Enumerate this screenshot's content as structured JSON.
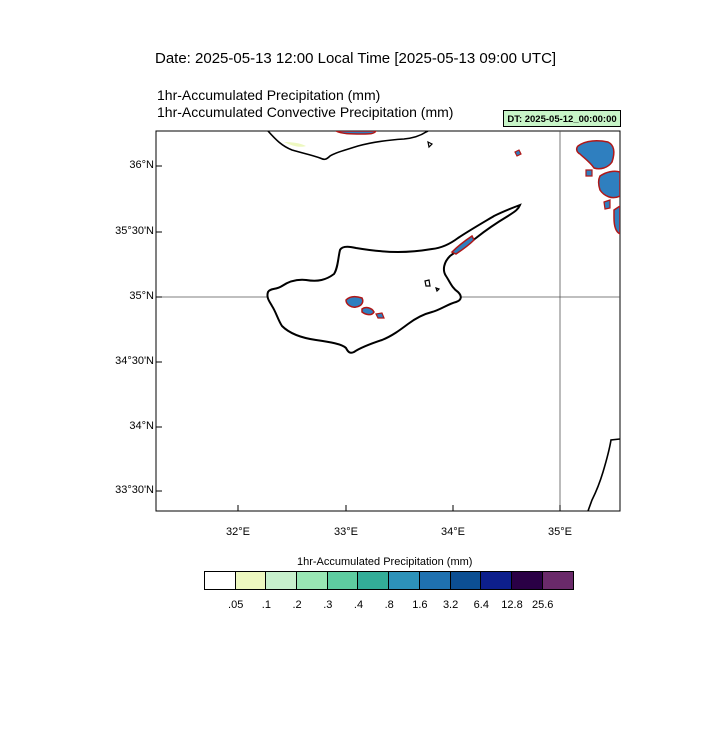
{
  "header": {
    "date_title": "Date: 2025-05-13  12:00 Local Time [2025-05-13  09:00 UTC]",
    "title_line_1": "1hr-Accumulated Precipitation   (mm)",
    "title_line_2": "1hr-Accumulated Convective Precipitation   (mm)",
    "dt_badge": "DT: 2025-05-12_00:00:00"
  },
  "map": {
    "lat_labels": [
      "36°N",
      "35°30'N",
      "35°N",
      "34°30'N",
      "34°N",
      "33°30'N"
    ],
    "lon_labels": [
      "32°E",
      "33°E",
      "34°E",
      "35°E"
    ],
    "reference_lines": [
      "35°N",
      "35°E"
    ],
    "coastline_color": "#000000",
    "convective_contour_color": "#b01818",
    "precip_fill_color": "#2f7fbf"
  },
  "colorbar": {
    "title": "1hr-Accumulated Precipitation  (mm)",
    "colors": [
      "#ffffff",
      "#edf8c0",
      "#c7f0cc",
      "#99e6b4",
      "#5ecca0",
      "#33ad98",
      "#2d92b9",
      "#1f71b0",
      "#0c4f93",
      "#0d1f8c",
      "#2a0045",
      "#6a2a6a"
    ],
    "tick_labels": [
      ".05",
      ".1",
      ".2",
      ".3",
      ".4",
      ".8",
      "1.6",
      "3.2",
      "6.4",
      "12.8",
      "25.6"
    ]
  }
}
